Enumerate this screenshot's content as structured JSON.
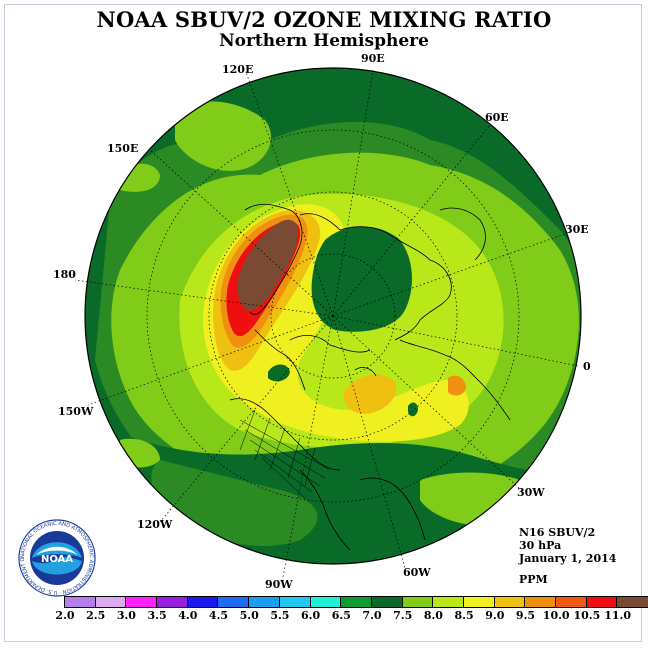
{
  "title": "NOAA SBUV/2 OZONE MIXING RATIO",
  "subtitle": "Northern Hemisphere",
  "info": {
    "instrument": "N16 SBUV/2",
    "level": "30 hPa",
    "date": "January 1, 2014",
    "units": "PPM"
  },
  "longitude_labels": [
    "90E",
    "60E",
    "30E",
    "0",
    "30W",
    "60W",
    "90W",
    "120W",
    "150W",
    "180",
    "150E",
    "120E"
  ],
  "colorbar": {
    "labels": [
      "2.0",
      "2.5",
      "3.0",
      "3.5",
      "4.0",
      "4.5",
      "5.0",
      "5.5",
      "6.0",
      "6.5",
      "7.0",
      "7.5",
      "8.0",
      "8.5",
      "9.0",
      "9.5",
      "10.0",
      "10.5",
      "11.0"
    ],
    "colors": [
      "#b57ee8",
      "#dcaaf0",
      "#ff22ff",
      "#9a1ee0",
      "#1a1aee",
      "#1f6cf0",
      "#1a9ef0",
      "#20c8f0",
      "#20f0d8",
      "#129a32",
      "#0a6a28",
      "#80cc18",
      "#b8e81a",
      "#f0f020",
      "#f0c010",
      "#f09010",
      "#f05a10",
      "#ee1010",
      "#7a4a32"
    ]
  },
  "logo": {
    "text": "NOAA",
    "ring_text": "NATIONAL OCEANIC AND ATMOSPHERIC ADMINISTRATION · U.S. DEPARTMENT OF COMMERCE ·"
  },
  "map_colors": {
    "dark_green": "#0a6a28",
    "mid_green": "#2c8a24",
    "light_green": "#80cc18",
    "yellow_green": "#b8e81a",
    "yellow": "#f0f020",
    "orange": "#f0c010",
    "dark_orange": "#f09010",
    "red": "#ee1010",
    "brown": "#7a4a32"
  }
}
